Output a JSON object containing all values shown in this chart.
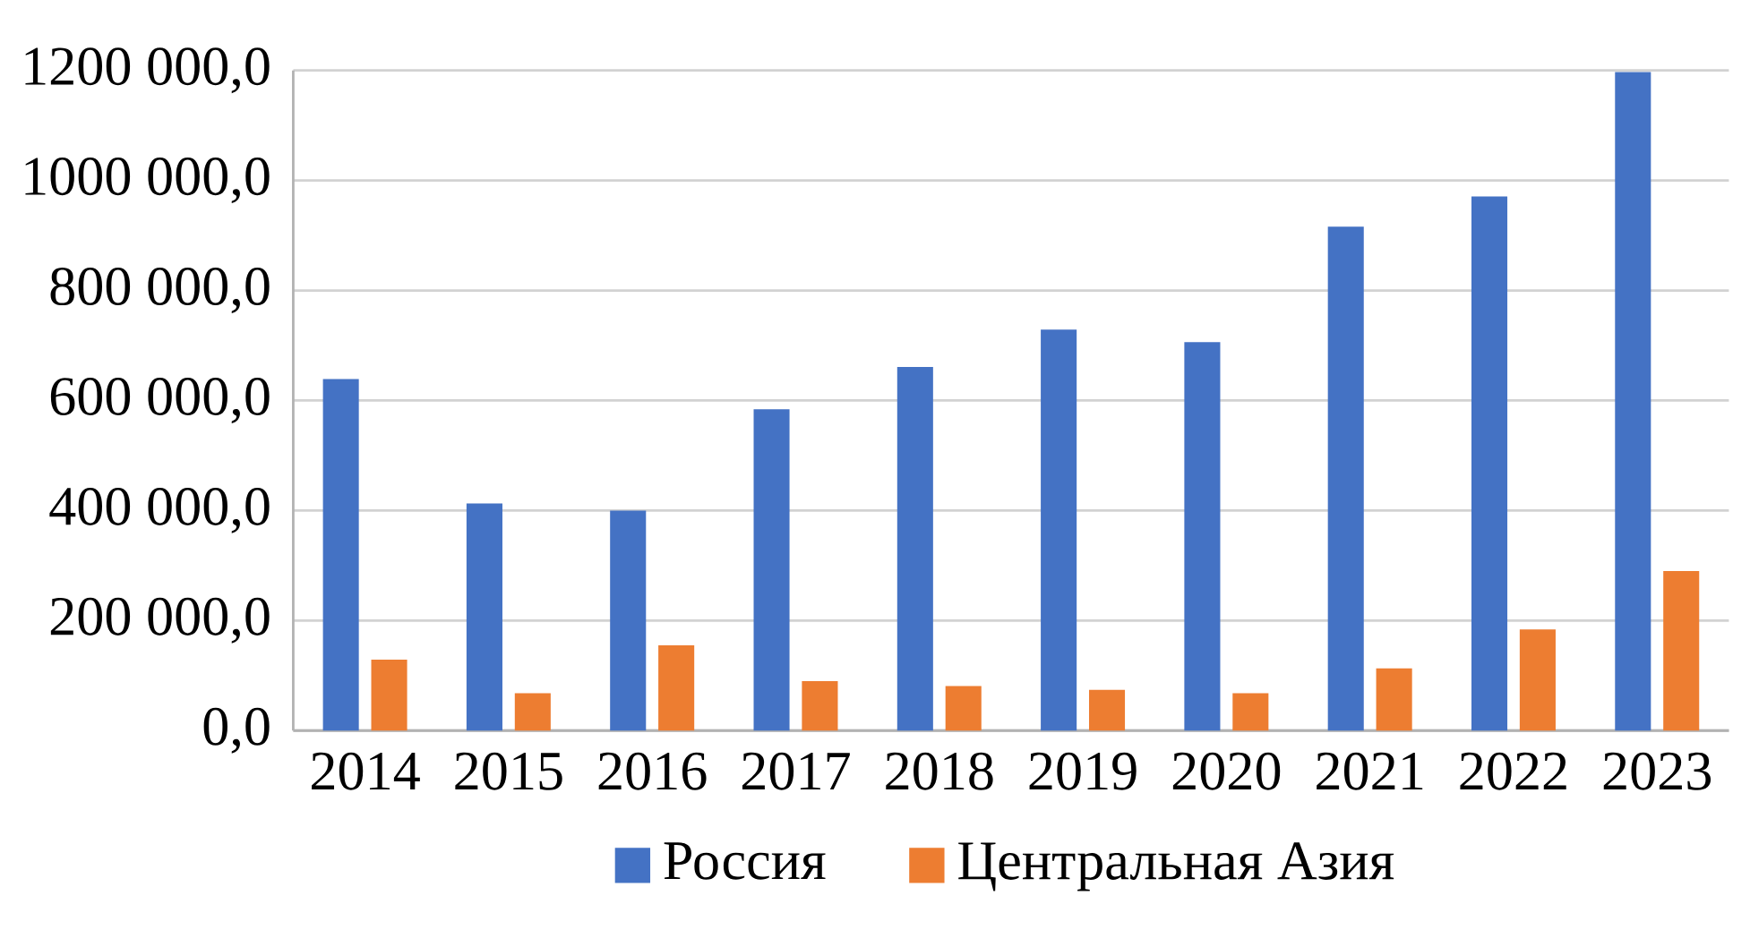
{
  "chart_data": {
    "type": "bar",
    "categories": [
      "2014",
      "2015",
      "2016",
      "2017",
      "2018",
      "2019",
      "2020",
      "2021",
      "2022",
      "2023"
    ],
    "series": [
      {
        "name": "Россия",
        "color": "#4472c4",
        "values": [
          639000,
          413000,
          400000,
          584000,
          661000,
          729000,
          706000,
          916000,
          971000,
          1197000
        ]
      },
      {
        "name": "Центральная Азия",
        "color": "#ed7d31",
        "values": [
          129000,
          68000,
          155000,
          90000,
          81000,
          74000,
          68000,
          113000,
          184000,
          290000
        ]
      }
    ],
    "ylim": [
      0,
      1200000
    ],
    "yticks": [
      {
        "value": 0,
        "label": "0,0"
      },
      {
        "value": 200000,
        "label": "200 000,0"
      },
      {
        "value": 400000,
        "label": "400 000,0"
      },
      {
        "value": 600000,
        "label": "600 000,0"
      },
      {
        "value": 800000,
        "label": "800 000,0"
      },
      {
        "value": 1000000,
        "label": "1000 000,0"
      },
      {
        "value": 1200000,
        "label": "1200 000,0"
      }
    ],
    "grid": "y",
    "legend": "bottom"
  }
}
